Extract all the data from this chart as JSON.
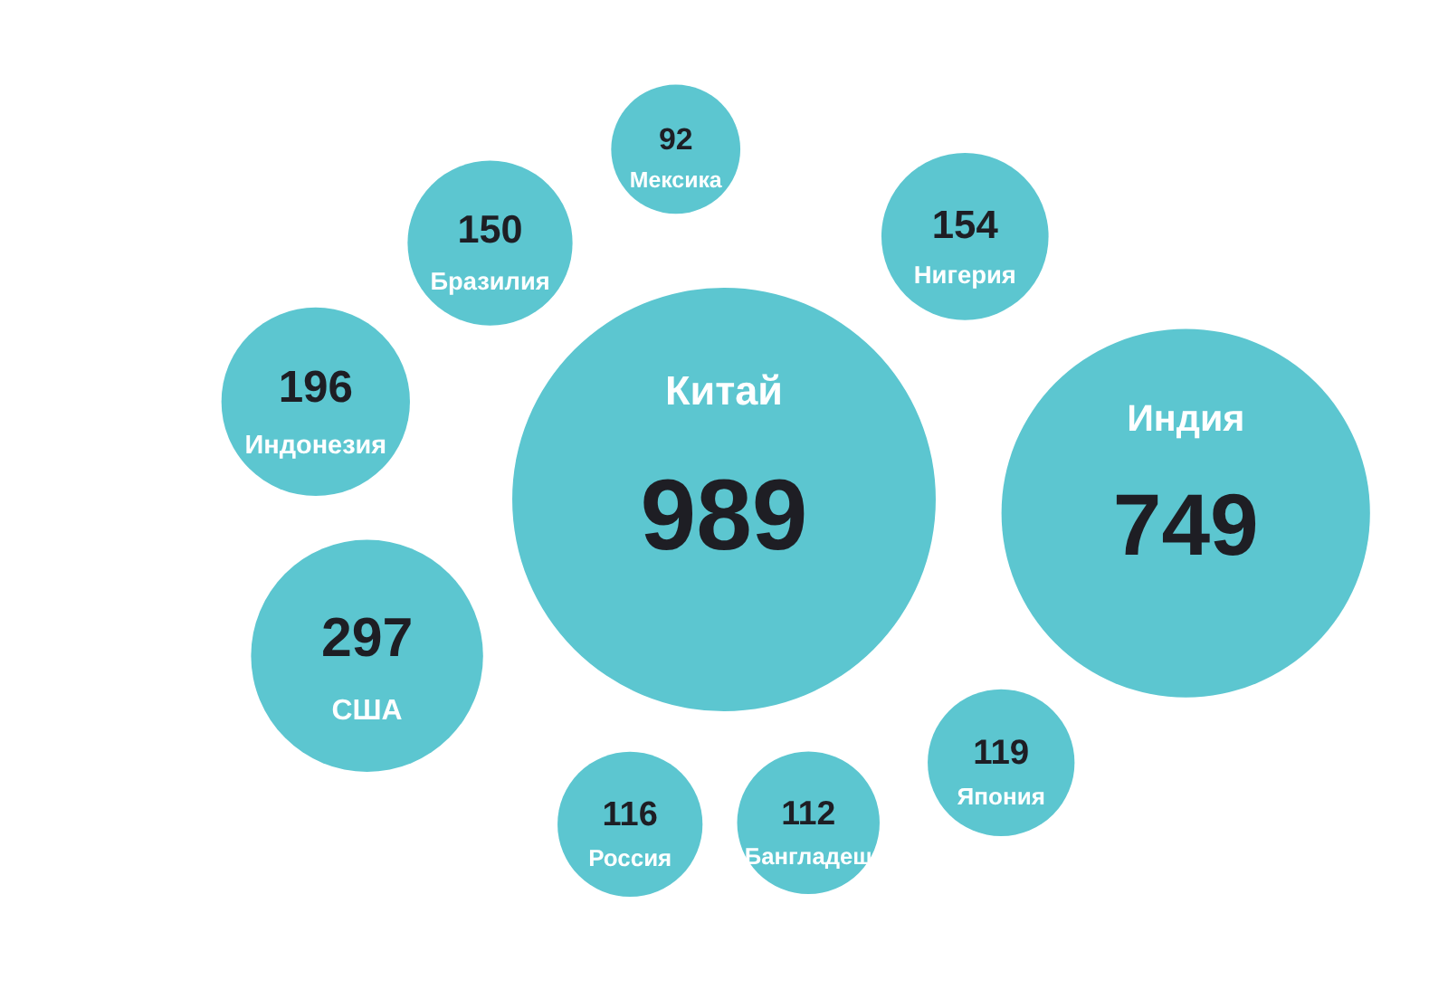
{
  "chart_data": {
    "type": "other",
    "categories": [
      "Индия",
      "Россия",
      "Нигерия",
      "Бразилия",
      "Китай",
      "Бангладеш",
      "Япония",
      "США",
      "Мексика",
      "Индонезия"
    ],
    "values": [
      749,
      116,
      154,
      150,
      989,
      112,
      119,
      297,
      92,
      196
    ],
    "color": "#5cc6d0",
    "data_labels": true
  }
}
